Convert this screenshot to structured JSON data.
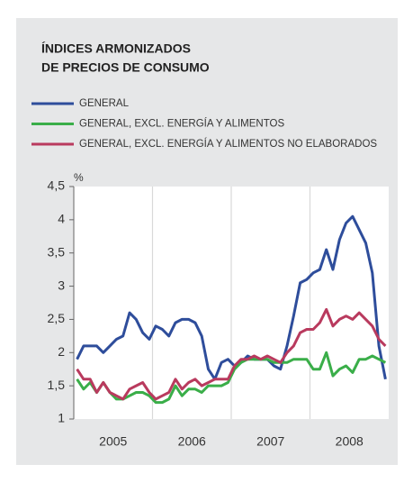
{
  "chart_data": {
    "type": "line",
    "title": "ÍNDICES ARMONIZADOS",
    "subtitle": "DE PRECIOS DE CONSUMO",
    "y_axis_label": "%",
    "categories": [
      null,
      null,
      null,
      null,
      null,
      null,
      "2005",
      null,
      null,
      null,
      null,
      null,
      null,
      null,
      null,
      null,
      null,
      null,
      "2006",
      null,
      null,
      null,
      null,
      null,
      null,
      null,
      null,
      null,
      null,
      null,
      "2007",
      null,
      null,
      null,
      null,
      null,
      null,
      null,
      null,
      null,
      null,
      null,
      "2008",
      null,
      null,
      null,
      null,
      null
    ],
    "ylim": [
      1,
      4.5
    ],
    "yticks": [
      1,
      {
        "value": 1.5,
        "label": "1,5"
      },
      2,
      {
        "value": 2.5,
        "label": "2,5"
      },
      3,
      {
        "value": 3.5,
        "label": "3,5"
      },
      4,
      {
        "value": 4.5,
        "label": "4,5"
      }
    ],
    "series": [
      {
        "name": "GENERAL",
        "color": "#2e4d9b",
        "values": [
          1.9,
          2.1,
          2.1,
          2.1,
          2.0,
          2.1,
          2.2,
          2.25,
          2.6,
          2.5,
          2.3,
          2.2,
          2.4,
          2.35,
          2.25,
          2.45,
          2.5,
          2.5,
          2.45,
          2.25,
          1.75,
          1.6,
          1.85,
          1.9,
          1.8,
          1.85,
          1.95,
          1.9,
          1.9,
          1.9,
          1.8,
          1.75,
          2.1,
          2.55,
          3.05,
          3.1,
          3.2,
          3.25,
          3.55,
          3.25,
          3.7,
          3.95,
          4.05,
          3.85,
          3.65,
          3.2,
          2.1,
          1.6
        ]
      },
      {
        "name": "GENERAL, EXCL. ENERGÍA Y ALIMENTOS",
        "color": "#3aae49",
        "values": [
          1.6,
          1.45,
          1.55,
          1.4,
          1.55,
          1.4,
          1.3,
          1.3,
          1.35,
          1.4,
          1.4,
          1.35,
          1.25,
          1.25,
          1.3,
          1.5,
          1.35,
          1.45,
          1.45,
          1.4,
          1.5,
          1.5,
          1.5,
          1.55,
          1.75,
          1.85,
          1.9,
          1.9,
          1.9,
          1.9,
          1.85,
          1.85,
          1.85,
          1.9,
          1.9,
          1.9,
          1.75,
          1.75,
          2.0,
          1.65,
          1.75,
          1.8,
          1.7,
          1.9,
          1.9,
          1.95,
          1.9,
          1.85
        ]
      },
      {
        "name": "GENERAL, EXCL. ENERGÍA Y ALIMENTOS NO ELABORADOS",
        "color": "#b93a5e",
        "values": [
          1.75,
          1.6,
          1.6,
          1.4,
          1.55,
          1.4,
          1.35,
          1.3,
          1.45,
          1.5,
          1.55,
          1.4,
          1.3,
          1.35,
          1.4,
          1.6,
          1.45,
          1.55,
          1.6,
          1.5,
          1.55,
          1.6,
          1.6,
          1.6,
          1.8,
          1.9,
          1.9,
          1.95,
          1.9,
          1.95,
          1.9,
          1.85,
          2.0,
          2.1,
          2.3,
          2.35,
          2.35,
          2.45,
          2.65,
          2.4,
          2.5,
          2.55,
          2.5,
          2.6,
          2.5,
          2.4,
          2.2,
          2.1
        ]
      }
    ]
  }
}
